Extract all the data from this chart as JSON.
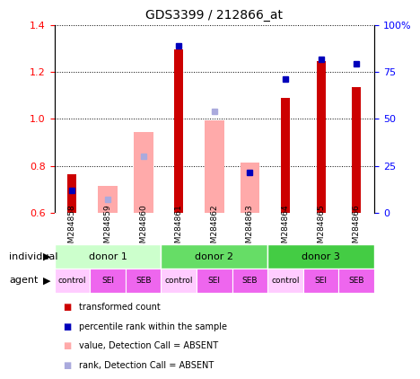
{
  "title": "GDS3399 / 212866_at",
  "samples": [
    "GSM284858",
    "GSM284859",
    "GSM284860",
    "GSM284861",
    "GSM284862",
    "GSM284863",
    "GSM284864",
    "GSM284865",
    "GSM284866"
  ],
  "red_bars": [
    0.765,
    null,
    null,
    1.295,
    null,
    null,
    1.09,
    1.245,
    1.135
  ],
  "pink_bars": [
    null,
    0.715,
    0.945,
    null,
    0.995,
    0.815,
    null,
    null,
    null
  ],
  "blue_squares_present": [
    0.695,
    null,
    null,
    1.31,
    null,
    0.77,
    1.17,
    1.255,
    1.235
  ],
  "blue_squares_absent": [
    null,
    0.655,
    0.84,
    null,
    1.03,
    null,
    null,
    null,
    null
  ],
  "ylim_left": [
    0.6,
    1.4
  ],
  "ylim_right": [
    0,
    100
  ],
  "yticks_left": [
    0.6,
    0.8,
    1.0,
    1.2,
    1.4
  ],
  "ytick_labels_left": [
    "0.6",
    "0.8",
    "1.0",
    "1.2",
    "1.4"
  ],
  "yticks_right": [
    0,
    25,
    50,
    75,
    100
  ],
  "ytick_labels_right": [
    "0",
    "25",
    "50",
    "75",
    "100%"
  ],
  "donors": [
    {
      "label": "donor 1",
      "start": 0,
      "end": 3,
      "color": "#ccffcc"
    },
    {
      "label": "donor 2",
      "start": 3,
      "end": 6,
      "color": "#66dd66"
    },
    {
      "label": "donor 3",
      "start": 6,
      "end": 9,
      "color": "#44cc44"
    }
  ],
  "agents": [
    "control",
    "SEI",
    "SEB",
    "control",
    "SEI",
    "SEB",
    "control",
    "SEI",
    "SEB"
  ],
  "agent_colors": [
    "#ffccff",
    "#ee66ee",
    "#ee66ee",
    "#ffccff",
    "#ee66ee",
    "#ee66ee",
    "#ffccff",
    "#ee66ee",
    "#ee66ee"
  ],
  "background_color": "#ffffff",
  "bar_color_red": "#cc0000",
  "bar_color_pink": "#ffaaaa",
  "bar_color_blue_present": "#0000bb",
  "bar_color_blue_absent": "#aaaadd",
  "sample_bg_color": "#c8c8c8",
  "legend_items": [
    {
      "color": "#cc0000",
      "marker": "s",
      "label": "transformed count"
    },
    {
      "color": "#0000bb",
      "marker": "s",
      "label": "percentile rank within the sample"
    },
    {
      "color": "#ffaaaa",
      "marker": "s",
      "label": "value, Detection Call = ABSENT"
    },
    {
      "color": "#aaaadd",
      "marker": "s",
      "label": "rank, Detection Call = ABSENT"
    }
  ]
}
